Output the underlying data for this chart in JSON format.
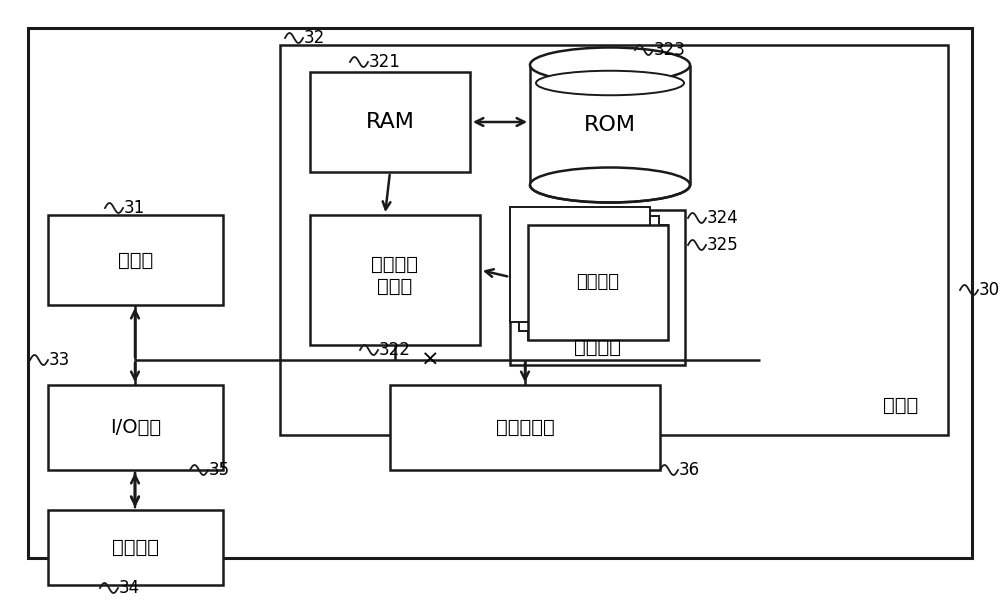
{
  "bg_color": "#ffffff",
  "lc": "#1a1a1a",
  "box_texts": {
    "processor": "处理器",
    "ram": "RAM",
    "rom": "ROM",
    "cache": "高速缓存\n存储器",
    "io": "I/O接口",
    "external": "外部设备",
    "network": "网络适配器",
    "program_module": "程序模块",
    "program_tools": "程序工具",
    "storage": "存储器"
  },
  "labels": [
    "30",
    "31",
    "32",
    "321",
    "322",
    "323",
    "324",
    "325",
    "33",
    "34",
    "35",
    "36"
  ]
}
